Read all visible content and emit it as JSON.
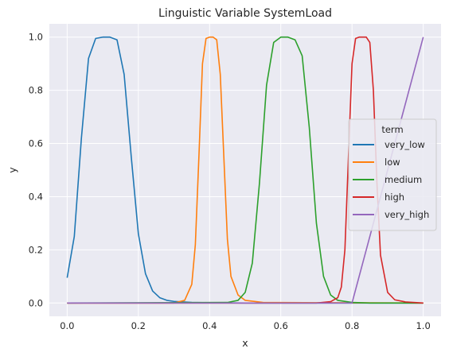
{
  "chart_data": {
    "type": "line",
    "title": "Linguistic Variable SystemLoad",
    "xlabel": "x",
    "ylabel": "y",
    "xlim": [
      -0.05,
      1.05
    ],
    "ylim": [
      -0.05,
      1.05
    ],
    "xticks": [
      0.0,
      0.2,
      0.4,
      0.6,
      0.8,
      1.0
    ],
    "yticks": [
      0.0,
      0.2,
      0.4,
      0.6,
      0.8,
      1.0
    ],
    "xtick_labels": [
      "0.0",
      "0.2",
      "0.4",
      "0.6",
      "0.8",
      "1.0"
    ],
    "ytick_labels": [
      "0.0",
      "0.2",
      "0.4",
      "0.6",
      "0.8",
      "1.0"
    ],
    "grid": true,
    "legend": {
      "title": "term",
      "placement": "center-right"
    },
    "series": [
      {
        "name": "very_low",
        "color": "#1f77b4",
        "x": [
          0.0,
          0.02,
          0.04,
          0.06,
          0.08,
          0.1,
          0.12,
          0.14,
          0.16,
          0.18,
          0.2,
          0.22,
          0.24,
          0.26,
          0.28,
          0.3,
          0.35,
          0.4,
          0.5,
          0.6,
          0.8,
          1.0
        ],
        "y": [
          0.095,
          0.25,
          0.62,
          0.92,
          0.995,
          1.0,
          1.0,
          0.99,
          0.86,
          0.55,
          0.26,
          0.11,
          0.045,
          0.02,
          0.01,
          0.006,
          0.002,
          0.001,
          0.0,
          0.0,
          0.0,
          0.0
        ]
      },
      {
        "name": "low",
        "color": "#ff7f0e",
        "x": [
          0.0,
          0.3,
          0.33,
          0.35,
          0.36,
          0.37,
          0.38,
          0.39,
          0.4,
          0.41,
          0.42,
          0.43,
          0.44,
          0.45,
          0.46,
          0.48,
          0.5,
          0.55,
          1.0
        ],
        "y": [
          0.0,
          0.0,
          0.01,
          0.07,
          0.22,
          0.55,
          0.9,
          0.995,
          1.0,
          1.0,
          0.99,
          0.86,
          0.55,
          0.24,
          0.1,
          0.03,
          0.01,
          0.002,
          0.0
        ]
      },
      {
        "name": "medium",
        "color": "#2ca02c",
        "x": [
          0.0,
          0.45,
          0.48,
          0.5,
          0.52,
          0.54,
          0.56,
          0.58,
          0.6,
          0.62,
          0.64,
          0.66,
          0.68,
          0.7,
          0.72,
          0.74,
          0.76,
          0.8,
          0.85,
          1.0
        ],
        "y": [
          0.0,
          0.002,
          0.01,
          0.04,
          0.15,
          0.45,
          0.82,
          0.98,
          1.0,
          1.0,
          0.99,
          0.93,
          0.66,
          0.3,
          0.1,
          0.03,
          0.01,
          0.002,
          0.0,
          0.0
        ]
      },
      {
        "name": "high",
        "color": "#d62728",
        "x": [
          0.0,
          0.7,
          0.74,
          0.76,
          0.77,
          0.78,
          0.79,
          0.8,
          0.81,
          0.82,
          0.83,
          0.84,
          0.85,
          0.86,
          0.87,
          0.88,
          0.9,
          0.92,
          0.95,
          1.0
        ],
        "y": [
          0.0,
          0.0,
          0.005,
          0.02,
          0.06,
          0.2,
          0.55,
          0.9,
          0.995,
          1.0,
          1.0,
          1.0,
          0.98,
          0.8,
          0.45,
          0.18,
          0.04,
          0.012,
          0.004,
          0.0
        ]
      },
      {
        "name": "very_high",
        "color": "#9467bd",
        "x": [
          0.0,
          0.8,
          1.0
        ],
        "y": [
          0.0,
          0.0,
          1.0
        ]
      }
    ]
  }
}
